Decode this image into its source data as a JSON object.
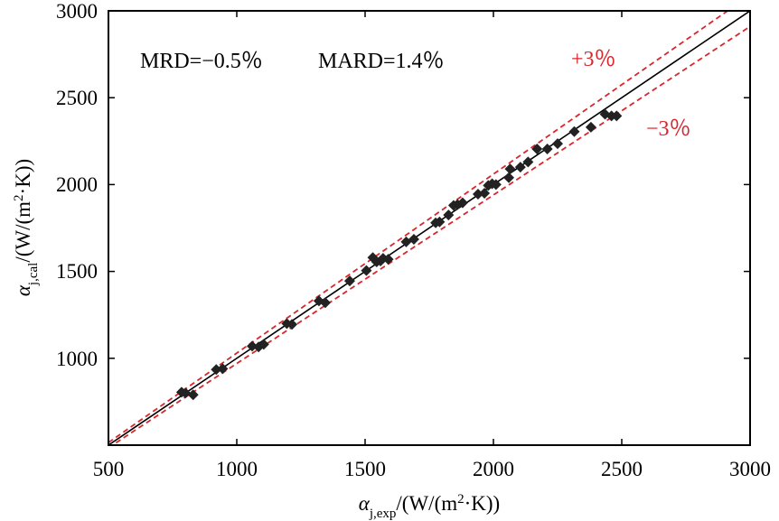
{
  "chart_data": {
    "type": "scatter",
    "xlabel": {
      "symbol": "α",
      "subscript": "j,exp",
      "unit_open": "/(W/(m",
      "superscript": "2",
      "unit_close": "·K))"
    },
    "ylabel": {
      "symbol": "α",
      "subscript": "j,cal",
      "unit_open": "/(W/(m",
      "superscript": "2",
      "unit_close": "·K))"
    },
    "xlim": [
      500,
      3000
    ],
    "ylim": [
      500,
      3000
    ],
    "x_ticks": [
      500,
      1000,
      1500,
      2000,
      2500,
      3000
    ],
    "y_ticks": [
      1000,
      1500,
      2000,
      2500,
      3000
    ],
    "x_tick_labels": [
      "500",
      "1000",
      "1500",
      "2000",
      "2500",
      "3000"
    ],
    "y_tick_labels": [
      "1000",
      "1500",
      "2000",
      "2500",
      "3000"
    ],
    "stats": {
      "mrd": "MRD=−0.5％",
      "mard": "MARD=1.4％"
    },
    "reference_lines": [
      {
        "name": "parity",
        "slope": 1.0,
        "style": "solid",
        "color": "#000000"
      },
      {
        "name": "plus",
        "label": "+3％",
        "slope": 1.03,
        "style": "dashed",
        "color": "#d9262c"
      },
      {
        "name": "minus",
        "label": "−3％",
        "slope": 0.97,
        "style": "dashed",
        "color": "#d9262c"
      }
    ],
    "marker_color": "#222222",
    "series": [
      {
        "name": "data",
        "points": [
          [
            785,
            805
          ],
          [
            800,
            800
          ],
          [
            830,
            790
          ],
          [
            920,
            935
          ],
          [
            945,
            940
          ],
          [
            1060,
            1070
          ],
          [
            1085,
            1065
          ],
          [
            1105,
            1080
          ],
          [
            1195,
            1200
          ],
          [
            1215,
            1195
          ],
          [
            1320,
            1330
          ],
          [
            1345,
            1320
          ],
          [
            1440,
            1445
          ],
          [
            1505,
            1505
          ],
          [
            1530,
            1580
          ],
          [
            1545,
            1555
          ],
          [
            1560,
            1560
          ],
          [
            1570,
            1575
          ],
          [
            1590,
            1570
          ],
          [
            1660,
            1670
          ],
          [
            1690,
            1685
          ],
          [
            1775,
            1780
          ],
          [
            1790,
            1785
          ],
          [
            1825,
            1825
          ],
          [
            1845,
            1880
          ],
          [
            1860,
            1885
          ],
          [
            1880,
            1895
          ],
          [
            1940,
            1945
          ],
          [
            1965,
            1950
          ],
          [
            1980,
            1995
          ],
          [
            1995,
            2005
          ],
          [
            2010,
            2000
          ],
          [
            2060,
            2040
          ],
          [
            2065,
            2090
          ],
          [
            2105,
            2100
          ],
          [
            2135,
            2130
          ],
          [
            2170,
            2205
          ],
          [
            2210,
            2205
          ],
          [
            2250,
            2235
          ],
          [
            2315,
            2305
          ],
          [
            2380,
            2330
          ],
          [
            2435,
            2405
          ],
          [
            2460,
            2395
          ],
          [
            2480,
            2395
          ]
        ]
      }
    ]
  }
}
